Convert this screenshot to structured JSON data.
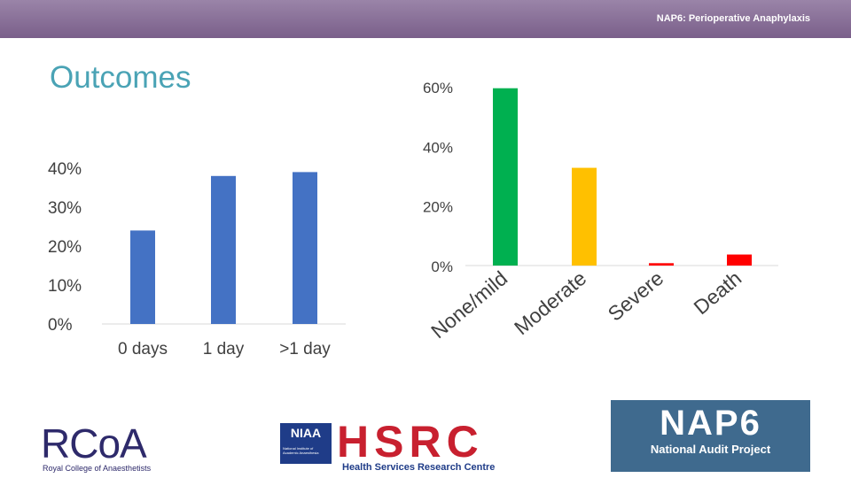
{
  "header": {
    "title": "NAP6: Perioperative Anaphylaxis"
  },
  "slide": {
    "title": "Outcomes"
  },
  "chart_data": [
    {
      "type": "bar",
      "categories": [
        "0 days",
        "1 day",
        ">1 day"
      ],
      "values": [
        24,
        38,
        39
      ],
      "ytick_labels": [
        "0%",
        "10%",
        "20%",
        "30%",
        "40%"
      ],
      "yticks": [
        0,
        10,
        20,
        30,
        40
      ],
      "ylim": [
        0,
        40
      ],
      "title": "",
      "xlabel": "",
      "ylabel": "",
      "grid": false,
      "bar_color": "#4472c4"
    },
    {
      "type": "bar",
      "categories": [
        "None/mild",
        "Moderate",
        "Severe",
        "Death"
      ],
      "values": [
        59.5,
        32.8,
        0.8,
        3.7
      ],
      "ytick_labels": [
        "0%",
        "20%",
        "40%",
        "60%"
      ],
      "yticks": [
        0,
        20,
        40,
        60
      ],
      "ylim": [
        0,
        60
      ],
      "title": "",
      "xlabel": "",
      "ylabel": "",
      "grid": false,
      "bar_colors": [
        "#00b050",
        "#ffc000",
        "#ff0000",
        "#ff0000"
      ]
    }
  ],
  "logos": {
    "rcoa": {
      "mark": "RCoA",
      "subtitle": "Royal College of Anaesthetists"
    },
    "niaa": {
      "badge": "NIAA",
      "badge_small": "National Institute of Academic Anaesthesia",
      "letters": "HSRC",
      "subtitle": "Health Services Research Centre"
    },
    "nap6": {
      "mark": "NAP6",
      "subtitle": "National Audit Project"
    }
  }
}
